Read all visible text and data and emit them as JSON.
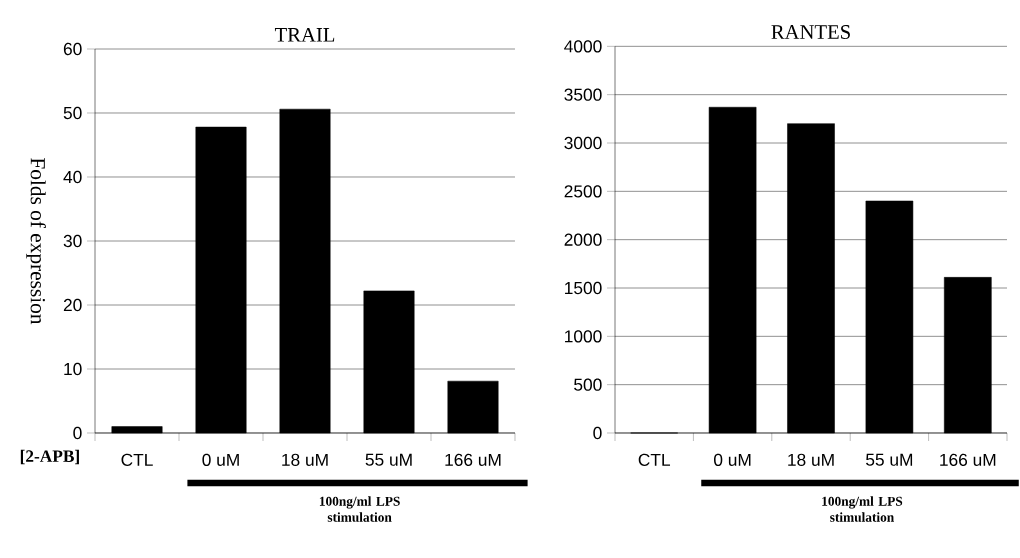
{
  "chart_data": [
    {
      "type": "bar",
      "title": "TRAIL",
      "ylabel": "Folds of expression",
      "categories": [
        "CTL",
        "0 uM",
        "18 uM",
        "55 uM",
        "166 uM"
      ],
      "values": [
        1.0,
        47.8,
        50.6,
        22.2,
        8.1
      ],
      "color": "#000000",
      "ylim": [
        0,
        60
      ],
      "yticks": [
        0,
        10,
        20,
        30,
        40,
        50,
        60
      ],
      "grid": "y",
      "annotations": [
        "[2-APB]",
        "100ng/ml LPS stimulation"
      ]
    },
    {
      "type": "bar",
      "title": "RANTES",
      "categories": [
        "CTL",
        "0 uM",
        "18 uM",
        "55 uM",
        "166 uM"
      ],
      "values": [
        0,
        3370,
        3200,
        2400,
        1610
      ],
      "color": "#000000",
      "ylim": [
        0,
        4000
      ],
      "yticks": [
        0,
        500,
        1000,
        1500,
        2000,
        2500,
        3000,
        3500,
        4000
      ],
      "grid": "y",
      "annotations": [
        "100ng/ml LPS stimulation"
      ]
    }
  ]
}
